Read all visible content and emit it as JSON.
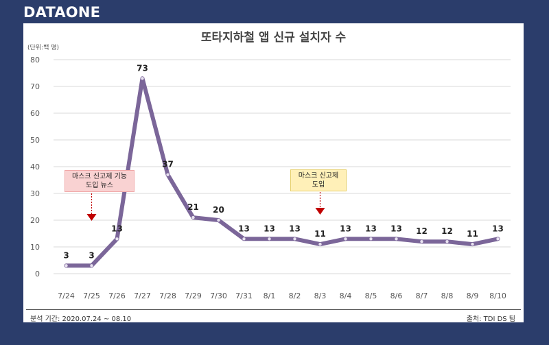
{
  "brand": "DATAONE",
  "footer": {
    "period": "분석 기간: 2020.07.24 ~ 08.10",
    "source": "출처: TDI DS 팀"
  },
  "annotations": {
    "note1": "마스크 신고제 기능 도입 뉴스",
    "note2": "마스크 신고제 도입"
  },
  "colors": {
    "line": "#7b6699",
    "marker_fill": "#e8e2f0",
    "arrow": "#c00000",
    "background": "#2b3d6b"
  },
  "chart_data": {
    "type": "line",
    "title": "또타지하철 앱 신규 설치자 수",
    "unit_label": "(단위:백 명)",
    "categories": [
      "7/24",
      "7/25",
      "7/26",
      "7/27",
      "7/28",
      "7/29",
      "7/30",
      "7/31",
      "8/1",
      "8/2",
      "8/3",
      "8/4",
      "8/5",
      "8/6",
      "8/7",
      "8/8",
      "8/9",
      "8/10"
    ],
    "series": [
      {
        "values": [
          3,
          3,
          13,
          73,
          37,
          21,
          20,
          13,
          13,
          13,
          11,
          13,
          13,
          13,
          12,
          12,
          11,
          13
        ]
      }
    ],
    "ylim": [
      0,
      80
    ],
    "yticks": [
      0,
      10,
      20,
      30,
      40,
      50,
      60,
      70,
      80
    ],
    "grid": true
  }
}
